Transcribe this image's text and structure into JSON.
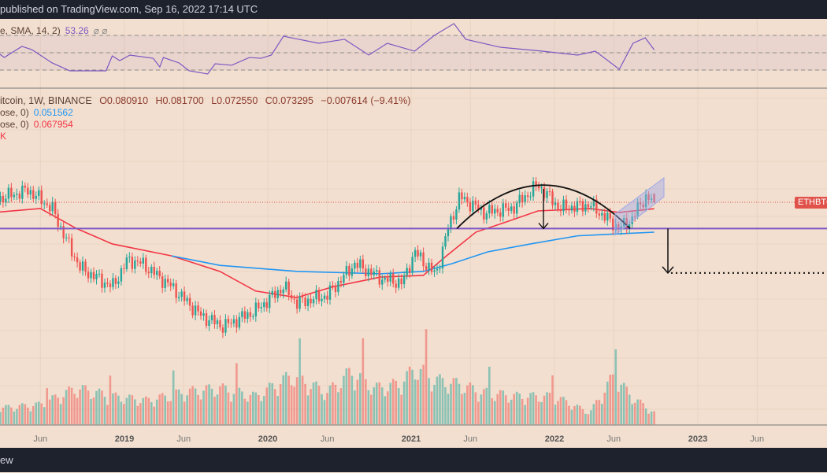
{
  "header": {
    "published": "published on TradingView.com, Sep 16, 2022 17:14 UTC"
  },
  "footer": {
    "brand": "ew"
  },
  "legend": {
    "rsi": {
      "label": "e, SMA, 14, 2)",
      "value": "53.26",
      "icons": "⌀ ⌀"
    },
    "symbol": {
      "label": "itcoin, 1W, BINANCE",
      "open": "O0.080910",
      "high": "H0.081700",
      "low": "L0.072550",
      "close": "C0.073295",
      "change": "−0.007614 (−9.41%)"
    },
    "ma_blue": {
      "label": "ose, 0)",
      "value": "0.051562"
    },
    "ma_red": {
      "label": "ose, 0)",
      "value": "0.067954"
    },
    "extra": "K"
  },
  "price_label": "ETHBTC",
  "colors": {
    "background": "#f2dfcf",
    "up": "#26a69a",
    "down": "#ef5350",
    "ma_blue": "#2196f3",
    "ma_red": "#f23645",
    "rsi": "#7e57c2",
    "support": "#7e57c2",
    "price_label": "#e0524a"
  },
  "chart_data": {
    "type": "candlestick",
    "symbol": "ETHBTC",
    "interval": "1W",
    "exchange": "BINANCE",
    "y_scale": "log",
    "x_ticks": [
      {
        "label": "Jun",
        "date": "2018-06-01"
      },
      {
        "label": "2019",
        "date": "2019-01-01",
        "year": true
      },
      {
        "label": "Jun",
        "date": "2019-06-01"
      },
      {
        "label": "2020",
        "date": "2020-01-01",
        "year": true
      },
      {
        "label": "Jun",
        "date": "2020-06-01"
      },
      {
        "label": "2021",
        "date": "2021-01-01",
        "year": true
      },
      {
        "label": "Jun",
        "date": "2021-06-01"
      },
      {
        "label": "2022",
        "date": "2022-01-01",
        "year": true
      },
      {
        "label": "Jun",
        "date": "2022-06-01"
      },
      {
        "label": "2023",
        "date": "2023-01-01",
        "year": true
      },
      {
        "label": "Jun",
        "date": "2023-06-01"
      }
    ],
    "close_path": [
      [
        "2018-02-01",
        0.075
      ],
      [
        "2018-05-01",
        0.0846
      ],
      [
        "2018-07-01",
        0.0681
      ],
      [
        "2018-08-01",
        0.0494
      ],
      [
        "2018-09-10",
        0.0339
      ],
      [
        "2018-12-01",
        0.0271
      ],
      [
        "2019-01-10",
        0.0373
      ],
      [
        "2019-02-15",
        0.0356
      ],
      [
        "2019-05-01",
        0.0271
      ],
      [
        "2019-07-15",
        0.0193
      ],
      [
        "2019-09-10",
        0.017
      ],
      [
        "2019-12-01",
        0.0205
      ],
      [
        "2020-02-10",
        0.0271
      ],
      [
        "2020-03-15",
        0.0224
      ],
      [
        "2020-06-01",
        0.0245
      ],
      [
        "2020-08-10",
        0.0356
      ],
      [
        "2020-10-20",
        0.0297
      ],
      [
        "2020-12-10",
        0.0284
      ],
      [
        "2021-01-10",
        0.0409
      ],
      [
        "2021-03-05",
        0.031
      ],
      [
        "2021-04-05",
        0.0538
      ],
      [
        "2021-05-05",
        0.0784
      ],
      [
        "2021-07-05",
        0.0649
      ],
      [
        "2021-09-15",
        0.0681
      ],
      [
        "2021-11-20",
        0.09
      ],
      [
        "2022-01-15",
        0.0681
      ],
      [
        "2022-04-01",
        0.0713
      ],
      [
        "2022-06-15",
        0.0538
      ],
      [
        "2022-07-15",
        0.0592
      ],
      [
        "2022-08-20",
        0.0784
      ],
      [
        "2022-09-12",
        0.0733
      ]
    ],
    "last_candle": {
      "open": 0.08091,
      "high": 0.0817,
      "low": 0.07255,
      "close": 0.073295
    },
    "ma_red": [
      [
        "2018-02-01",
        0.065
      ],
      [
        "2018-06-01",
        0.0681
      ],
      [
        "2018-09-01",
        0.0538
      ],
      [
        "2018-12-01",
        0.0449
      ],
      [
        "2019-05-01",
        0.039
      ],
      [
        "2019-09-01",
        0.0325
      ],
      [
        "2019-12-01",
        0.0258
      ],
      [
        "2020-03-15",
        0.0239
      ],
      [
        "2020-06-15",
        0.0271
      ],
      [
        "2020-10-15",
        0.0304
      ],
      [
        "2021-02-01",
        0.031
      ],
      [
        "2021-04-01",
        0.039
      ],
      [
        "2021-06-15",
        0.0516
      ],
      [
        "2021-09-01",
        0.0582
      ],
      [
        "2021-11-20",
        0.0662
      ],
      [
        "2022-04-01",
        0.0681
      ],
      [
        "2022-06-15",
        0.065
      ],
      [
        "2022-09-12",
        0.067954
      ]
    ],
    "ma_blue": [
      [
        "2019-05-01",
        0.039
      ],
      [
        "2019-09-01",
        0.0349
      ],
      [
        "2020-03-15",
        0.0325
      ],
      [
        "2020-10-15",
        0.0316
      ],
      [
        "2021-02-01",
        0.0325
      ],
      [
        "2021-04-15",
        0.0356
      ],
      [
        "2021-07-15",
        0.0409
      ],
      [
        "2021-11-01",
        0.0449
      ],
      [
        "2022-03-01",
        0.0494
      ],
      [
        "2022-06-15",
        0.0506
      ],
      [
        "2022-09-12",
        0.051562
      ]
    ],
    "support_level": 0.0538,
    "target_level": 0.0319,
    "rsi": {
      "levels": [
        70,
        50,
        30
      ],
      "points": [
        [
          "2018-02-01",
          53.6
        ],
        [
          "2018-03-01",
          44.5
        ],
        [
          "2018-04-15",
          57.3
        ],
        [
          "2018-05-10",
          53.6
        ],
        [
          "2018-07-01",
          38.2
        ],
        [
          "2018-08-15",
          29.1
        ],
        [
          "2018-11-15",
          29.1
        ],
        [
          "2018-12-01",
          46.4
        ],
        [
          "2018-12-20",
          40.9
        ],
        [
          "2019-01-15",
          47.3
        ],
        [
          "2019-03-15",
          43.6
        ],
        [
          "2019-04-01",
          33.6
        ],
        [
          "2019-04-10",
          44.5
        ],
        [
          "2019-05-20",
          38.2
        ],
        [
          "2019-06-15",
          29.1
        ],
        [
          "2019-08-01",
          25.5
        ],
        [
          "2019-08-20",
          37.3
        ],
        [
          "2019-10-01",
          35.5
        ],
        [
          "2019-11-15",
          44.5
        ],
        [
          "2019-12-15",
          43.6
        ],
        [
          "2020-01-10",
          47.3
        ],
        [
          "2020-02-10",
          69.1
        ],
        [
          "2020-05-10",
          60.9
        ],
        [
          "2020-07-15",
          65.5
        ],
        [
          "2020-09-15",
          47.3
        ],
        [
          "2020-11-01",
          60.9
        ],
        [
          "2021-01-10",
          51.8
        ],
        [
          "2021-03-01",
          70
        ],
        [
          "2021-04-20",
          83.6
        ],
        [
          "2021-05-20",
          65.5
        ],
        [
          "2021-08-15",
          56.4
        ],
        [
          "2021-12-01",
          51.8
        ],
        [
          "2022-03-01",
          47.3
        ],
        [
          "2022-04-15",
          51.8
        ],
        [
          "2022-06-15",
          30.9
        ],
        [
          "2022-07-20",
          60.9
        ],
        [
          "2022-08-20",
          67.3
        ],
        [
          "2022-09-12",
          53.26
        ]
      ]
    },
    "volume_profile": [
      [
        "2018-02-01",
        20
      ],
      [
        "2018-06-01",
        25
      ],
      [
        "2018-09-01",
        45
      ],
      [
        "2018-12-01",
        35
      ],
      [
        "2019-03-01",
        30
      ],
      [
        "2019-06-01",
        40
      ],
      [
        "2019-09-01",
        45
      ],
      [
        "2019-12-01",
        35
      ],
      [
        "2020-03-01",
        60
      ],
      [
        "2020-06-01",
        40
      ],
      [
        "2020-08-01",
        65
      ],
      [
        "2020-10-01",
        45
      ],
      [
        "2020-12-01",
        50
      ],
      [
        "2021-01-15",
        70
      ],
      [
        "2021-03-01",
        55
      ],
      [
        "2021-05-01",
        50
      ],
      [
        "2021-07-01",
        40
      ],
      [
        "2021-10-01",
        35
      ],
      [
        "2022-01-01",
        35
      ],
      [
        "2022-04-01",
        15
      ],
      [
        "2022-06-01",
        60
      ],
      [
        "2022-07-15",
        35
      ],
      [
        "2022-09-12",
        15
      ]
    ]
  }
}
